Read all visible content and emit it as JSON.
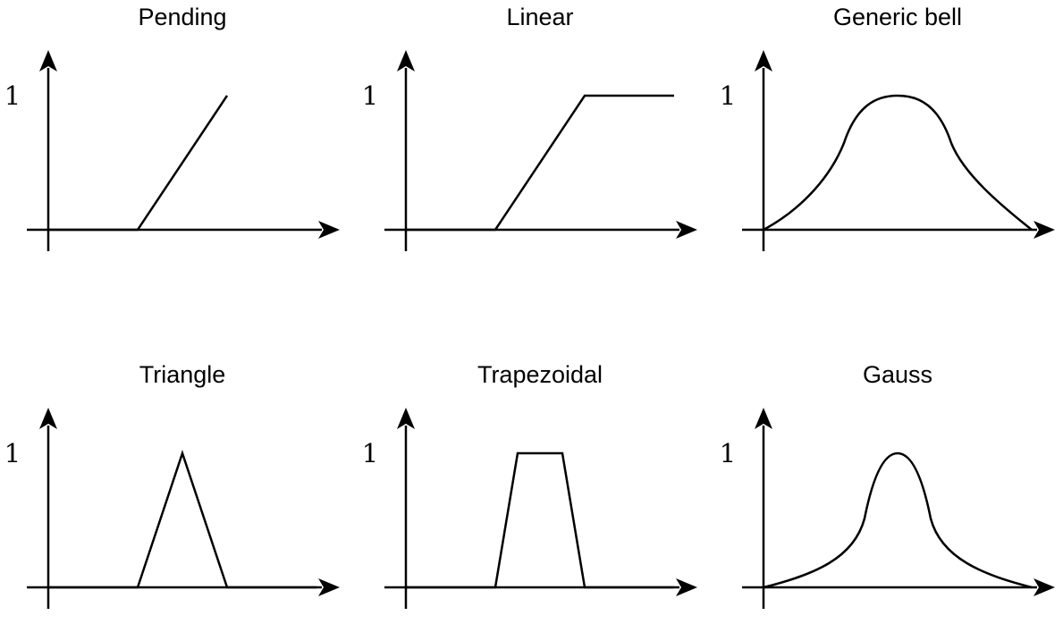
{
  "figure": {
    "y_tick_label": "1",
    "panels": [
      {
        "id": "pending",
        "title": "Pending",
        "shape": "ramp-up"
      },
      {
        "id": "linear",
        "title": "Linear",
        "shape": "ramp-plateau"
      },
      {
        "id": "generic-bell",
        "title": "Generic bell",
        "shape": "generic-bell"
      },
      {
        "id": "triangle",
        "title": "Triangle",
        "shape": "triangle"
      },
      {
        "id": "trapezoidal",
        "title": "Trapezoidal",
        "shape": "trapezoid"
      },
      {
        "id": "gauss",
        "title": "Gauss",
        "shape": "gauss"
      }
    ]
  },
  "colors": {
    "stroke": "#000000",
    "background": "#ffffff"
  }
}
